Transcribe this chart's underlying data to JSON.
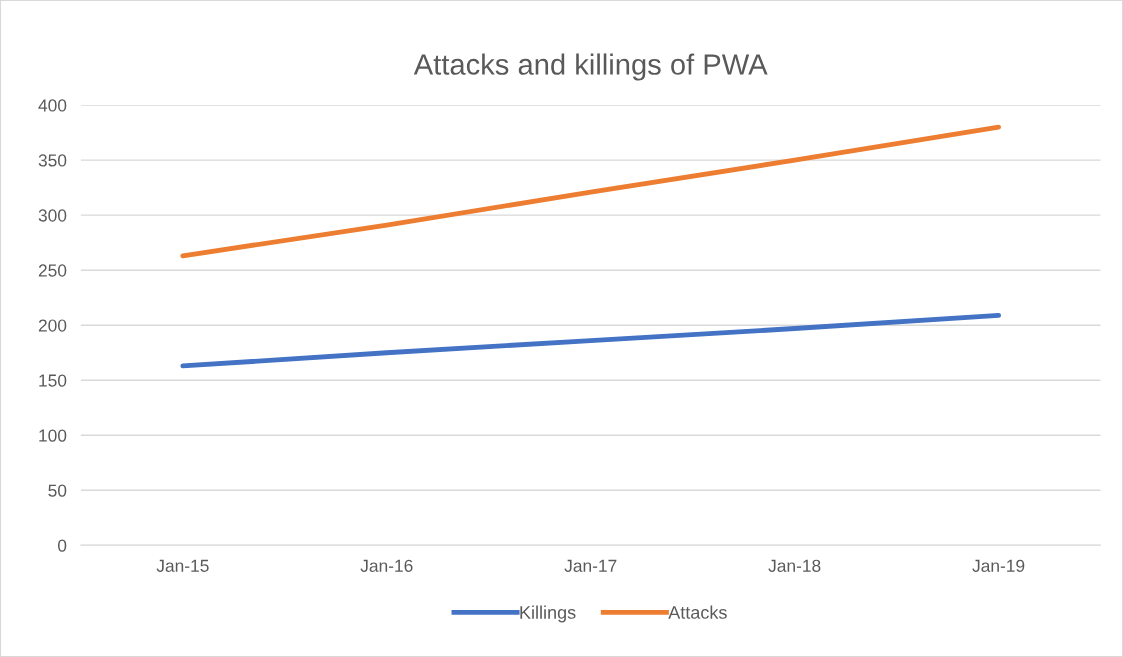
{
  "chart_data": {
    "type": "line",
    "title": "Attacks and killings of PWA",
    "categories": [
      "Jan-15",
      "Jan-16",
      "Jan-17",
      "Jan-18",
      "Jan-19"
    ],
    "series": [
      {
        "name": "Killings",
        "color": "#4472c4",
        "values": [
          163,
          175,
          186,
          197,
          209
        ]
      },
      {
        "name": "Attacks",
        "color": "#ed7d31",
        "values": [
          263,
          291,
          321,
          350,
          380
        ]
      }
    ],
    "ylim": [
      0,
      400
    ],
    "yticks": [
      0,
      50,
      100,
      150,
      200,
      250,
      300,
      350,
      400
    ],
    "grid": "y",
    "legend": "bottom",
    "marker": "none",
    "line_style": "solid"
  }
}
